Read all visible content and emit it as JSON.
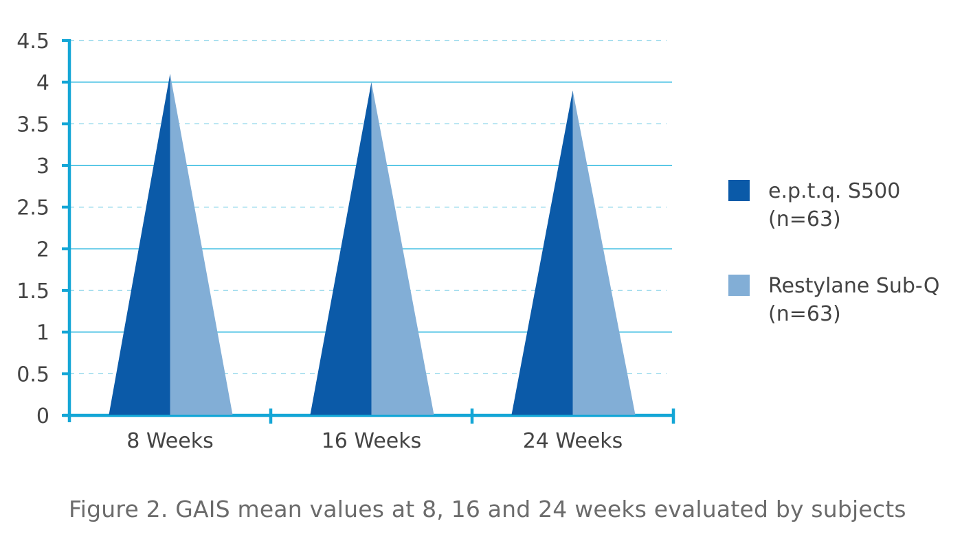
{
  "caption": "Figure 2. GAIS mean values at 8, 16 and 24 weeks evaluated by subjects",
  "colors": {
    "axis": "#14a6d6",
    "grid_major": "#5bc8e6",
    "grid_minor": "#8fd6ea",
    "tick_text": "#444444",
    "series_1": "#0b5aa8",
    "series_2": "#82aed6"
  },
  "chart_data": {
    "type": "bar",
    "title": "",
    "xlabel": "",
    "ylabel": "",
    "categories": [
      "8 Weeks",
      "16 Weeks",
      "24 Weeks"
    ],
    "series": [
      {
        "name": "e.p.t.q. S500\n(n=63)",
        "values": [
          4.1,
          4.0,
          3.9
        ],
        "color": "#0b5aa8"
      },
      {
        "name": "Restylane Sub-Q\n(n=63)",
        "values": [
          4.1,
          4.0,
          3.9
        ],
        "color": "#82aed6"
      }
    ],
    "ylim": [
      0,
      4.5
    ],
    "yticks": [
      "0",
      "0.5",
      "1",
      "1.5",
      "2",
      "2.5",
      "3",
      "3.5",
      "4",
      "4.5"
    ],
    "grid": true,
    "legend_position": "right"
  }
}
